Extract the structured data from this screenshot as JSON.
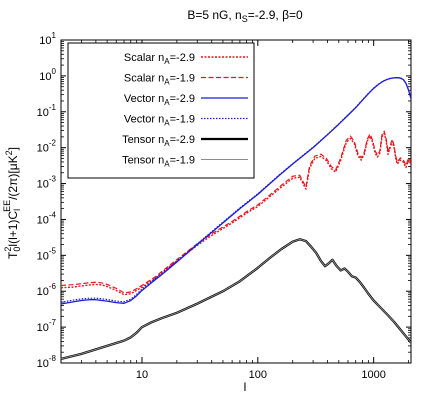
{
  "chart_data": {
    "type": "line",
    "title": "B=5 nG, n",
    "title_sub": "S",
    "title_rest": "=-2.9, β=0",
    "xlabel": "l",
    "ylabel": "T",
    "ylabel_parts": [
      "T",
      "0",
      "2",
      "l(l+1)C",
      "l",
      "EE",
      "/(2π)[μK",
      "2",
      "]"
    ],
    "x_scale": "log",
    "y_scale": "log",
    "xlim": [
      2,
      2100
    ],
    "ylim": [
      1e-08,
      10
    ],
    "x_ticks": [
      10,
      100,
      1000
    ],
    "x_tick_labels": [
      "10",
      "100",
      "1000"
    ],
    "y_ticks": [
      1e-08,
      1e-07,
      1e-06,
      1e-05,
      0.0001,
      0.001,
      0.01,
      0.1,
      1,
      10
    ],
    "y_tick_labels": [
      {
        "base": "10",
        "exp": "-8"
      },
      {
        "base": "10",
        "exp": "-7"
      },
      {
        "base": "10",
        "exp": "-6"
      },
      {
        "base": "10",
        "exp": "-5"
      },
      {
        "base": "10",
        "exp": "-4"
      },
      {
        "base": "10",
        "exp": "-3"
      },
      {
        "base": "10",
        "exp": "-2"
      },
      {
        "base": "10",
        "exp": "-1"
      },
      {
        "base": "10",
        "exp": "0"
      },
      {
        "base": "10",
        "exp": "1"
      }
    ],
    "legend_position": "top-left",
    "series": [
      {
        "name": "Scalar n",
        "sub": "A",
        "tail": "=-2.9",
        "color": "#e8151b",
        "dash": "2,1.5",
        "width": 1.4,
        "points": [
          [
            2,
            1.25e-06
          ],
          [
            2.5,
            1.3e-06
          ],
          [
            3,
            1.4e-06
          ],
          [
            3.5,
            1.5e-06
          ],
          [
            4,
            1.55e-06
          ],
          [
            4.5,
            1.5e-06
          ],
          [
            5,
            1.35e-06
          ],
          [
            6,
            1.05e-06
          ],
          [
            7,
            8e-07
          ],
          [
            8,
            8.5e-07
          ],
          [
            10,
            1.3e-06
          ],
          [
            13,
            2.3e-06
          ],
          [
            16,
            4e-06
          ],
          [
            20,
            7e-06
          ],
          [
            30,
            1.9e-05
          ],
          [
            40,
            3.6e-05
          ],
          [
            60,
            8e-05
          ],
          [
            80,
            0.00015
          ],
          [
            100,
            0.00023
          ],
          [
            130,
            0.00046
          ],
          [
            160,
            0.0008
          ],
          [
            200,
            0.0014
          ],
          [
            230,
            0.0015
          ],
          [
            260,
            0.0007
          ],
          [
            280,
            0.0027
          ],
          [
            310,
            0.005
          ],
          [
            350,
            0.0057
          ],
          [
            390,
            0.0044
          ],
          [
            430,
            0.0026
          ],
          [
            470,
            0.0021
          ],
          [
            520,
            0.0045
          ],
          [
            580,
            0.014
          ],
          [
            630,
            0.018
          ],
          [
            680,
            0.013
          ],
          [
            730,
            0.006
          ],
          [
            780,
            0.0045
          ],
          [
            830,
            0.0065
          ],
          [
            880,
            0.015
          ],
          [
            930,
            0.021
          ],
          [
            980,
            0.014
          ],
          [
            1030,
            0.007
          ],
          [
            1080,
            0.0055
          ],
          [
            1130,
            0.007
          ],
          [
            1180,
            0.02
          ],
          [
            1230,
            0.025
          ],
          [
            1280,
            0.016
          ],
          [
            1330,
            0.0065
          ],
          [
            1400,
            0.011
          ],
          [
            1450,
            0.015
          ],
          [
            1500,
            0.01
          ],
          [
            1550,
            0.005
          ],
          [
            1600,
            0.0035
          ],
          [
            1700,
            0.0045
          ],
          [
            1800,
            0.004
          ],
          [
            1900,
            0.0028
          ],
          [
            2000,
            0.0045
          ],
          [
            2100,
            0.0035
          ]
        ]
      },
      {
        "name": "Scalar n",
        "sub": "A",
        "tail": "=-1.9",
        "color": "#e8151b",
        "dash": "5,2.5",
        "width": 1.2,
        "points": [
          [
            2,
            1.45e-06
          ],
          [
            2.5,
            1.52e-06
          ],
          [
            3,
            1.62e-06
          ],
          [
            3.5,
            1.72e-06
          ],
          [
            4,
            1.78e-06
          ],
          [
            4.5,
            1.7e-06
          ],
          [
            5,
            1.55e-06
          ],
          [
            6,
            1.2e-06
          ],
          [
            7,
            9e-07
          ],
          [
            8,
            9.5e-07
          ],
          [
            10,
            1.45e-06
          ],
          [
            13,
            2.5e-06
          ],
          [
            16,
            4.3e-06
          ],
          [
            20,
            7.6e-06
          ],
          [
            30,
            2.1e-05
          ],
          [
            40,
            4e-05
          ],
          [
            60,
            8.8e-05
          ],
          [
            80,
            0.000165
          ],
          [
            100,
            0.000255
          ],
          [
            130,
            0.00051
          ],
          [
            160,
            0.0009
          ],
          [
            200,
            0.0016
          ],
          [
            230,
            0.0017
          ],
          [
            260,
            0.0008
          ],
          [
            280,
            0.0031
          ],
          [
            310,
            0.0058
          ],
          [
            350,
            0.0066
          ],
          [
            390,
            0.0051
          ],
          [
            430,
            0.003
          ],
          [
            470,
            0.0024
          ],
          [
            520,
            0.0052
          ],
          [
            580,
            0.016
          ],
          [
            630,
            0.021
          ],
          [
            680,
            0.015
          ],
          [
            730,
            0.007
          ],
          [
            780,
            0.0052
          ],
          [
            830,
            0.0075
          ],
          [
            880,
            0.017
          ],
          [
            930,
            0.024
          ],
          [
            980,
            0.016
          ],
          [
            1030,
            0.008
          ],
          [
            1080,
            0.0063
          ],
          [
            1130,
            0.008
          ],
          [
            1180,
            0.023
          ],
          [
            1230,
            0.029
          ],
          [
            1280,
            0.018
          ],
          [
            1330,
            0.0075
          ],
          [
            1400,
            0.0125
          ],
          [
            1450,
            0.017
          ],
          [
            1500,
            0.0115
          ],
          [
            1550,
            0.0058
          ],
          [
            1600,
            0.004
          ],
          [
            1700,
            0.0052
          ],
          [
            1800,
            0.0046
          ],
          [
            1900,
            0.0032
          ],
          [
            2000,
            0.0052
          ],
          [
            2100,
            0.004
          ]
        ]
      },
      {
        "name": "Vector n",
        "sub": "A",
        "tail": "=-2.9",
        "color": "#1c1cd6",
        "dash": "",
        "width": 1.3,
        "points": [
          [
            2,
            4.4e-07
          ],
          [
            2.5,
            5e-07
          ],
          [
            3,
            5.5e-07
          ],
          [
            3.5,
            5.8e-07
          ],
          [
            4,
            5.8e-07
          ],
          [
            5,
            5.3e-07
          ],
          [
            6,
            4.8e-07
          ],
          [
            7,
            4.6e-07
          ],
          [
            8,
            5.5e-07
          ],
          [
            9,
            7.5e-07
          ],
          [
            10,
            1.05e-06
          ],
          [
            12,
            1.7e-06
          ],
          [
            15,
            3e-06
          ],
          [
            20,
            6.5e-06
          ],
          [
            30,
            2e-05
          ],
          [
            50,
            8e-05
          ],
          [
            70,
            0.0002
          ],
          [
            100,
            0.0005
          ],
          [
            150,
            0.0016
          ],
          [
            200,
            0.0035
          ],
          [
            300,
            0.01
          ],
          [
            400,
            0.023
          ],
          [
            500,
            0.045
          ],
          [
            600,
            0.08
          ],
          [
            700,
            0.13
          ],
          [
            800,
            0.21
          ],
          [
            900,
            0.32
          ],
          [
            1000,
            0.45
          ],
          [
            1100,
            0.58
          ],
          [
            1200,
            0.7
          ],
          [
            1300,
            0.79
          ],
          [
            1400,
            0.85
          ],
          [
            1500,
            0.88
          ],
          [
            1600,
            0.89
          ],
          [
            1700,
            0.87
          ],
          [
            1800,
            0.79
          ],
          [
            1900,
            0.62
          ],
          [
            2000,
            0.4
          ],
          [
            2100,
            0.23
          ]
        ]
      },
      {
        "name": "Vector n",
        "sub": "A",
        "tail": "=-1.9",
        "color": "#1c1cd6",
        "dash": "1.5,1.5",
        "width": 1.2,
        "points": [
          [
            2,
            4.9e-07
          ],
          [
            2.5,
            5.6e-07
          ],
          [
            3,
            6.1e-07
          ],
          [
            3.5,
            6.4e-07
          ],
          [
            4,
            6.4e-07
          ],
          [
            5,
            5.9e-07
          ],
          [
            6,
            5.3e-07
          ],
          [
            7,
            5.1e-07
          ],
          [
            8,
            6e-07
          ],
          [
            9,
            8.2e-07
          ],
          [
            10,
            1.15e-06
          ],
          [
            12,
            1.85e-06
          ],
          [
            15,
            3.2e-06
          ],
          [
            20,
            6.9e-06
          ],
          [
            30,
            2.1e-05
          ],
          [
            50,
            8.4e-05
          ],
          [
            70,
            0.00021
          ],
          [
            100,
            0.00052
          ],
          [
            150,
            0.00165
          ],
          [
            200,
            0.0036
          ],
          [
            300,
            0.0103
          ],
          [
            400,
            0.0235
          ],
          [
            500,
            0.046
          ],
          [
            600,
            0.082
          ],
          [
            700,
            0.133
          ],
          [
            800,
            0.215
          ],
          [
            900,
            0.325
          ],
          [
            1000,
            0.46
          ],
          [
            1100,
            0.59
          ],
          [
            1200,
            0.71
          ],
          [
            1300,
            0.8
          ],
          [
            1400,
            0.86
          ],
          [
            1500,
            0.89
          ],
          [
            1600,
            0.9
          ],
          [
            1700,
            0.88
          ],
          [
            1800,
            0.8
          ],
          [
            1900,
            0.63
          ],
          [
            2000,
            0.41
          ],
          [
            2100,
            0.24
          ]
        ]
      },
      {
        "name": "Tensor n",
        "sub": "A",
        "tail": "=-2.9",
        "color": "#000000",
        "dash": "",
        "width": 2.3,
        "points": [
          [
            2,
            1.3e-08
          ],
          [
            3,
            1.8e-08
          ],
          [
            4,
            2.4e-08
          ],
          [
            5,
            3e-08
          ],
          [
            6,
            3.6e-08
          ],
          [
            7,
            4.2e-08
          ],
          [
            8,
            5.2e-08
          ],
          [
            9,
            7e-08
          ],
          [
            10,
            1e-07
          ],
          [
            12,
            1.35e-07
          ],
          [
            15,
            1.8e-07
          ],
          [
            20,
            2.5e-07
          ],
          [
            30,
            4.5e-07
          ],
          [
            50,
            1e-06
          ],
          [
            70,
            1.9e-06
          ],
          [
            100,
            4.5e-06
          ],
          [
            130,
            9e-06
          ],
          [
            160,
            1.5e-05
          ],
          [
            200,
            2.4e-05
          ],
          [
            230,
            2.8e-05
          ],
          [
            260,
            2.5e-05
          ],
          [
            290,
            1.7e-05
          ],
          [
            320,
            1.15e-05
          ],
          [
            350,
            7e-06
          ],
          [
            380,
            5e-06
          ],
          [
            410,
            6e-06
          ],
          [
            440,
            7.5e-06
          ],
          [
            480,
            5e-06
          ],
          [
            520,
            3.8e-06
          ],
          [
            560,
            4.3e-06
          ],
          [
            600,
            3.5e-06
          ],
          [
            650,
            2.6e-06
          ],
          [
            700,
            2.4e-06
          ],
          [
            760,
            1.8e-06
          ],
          [
            820,
            1.3e-06
          ],
          [
            900,
            8.5e-07
          ],
          [
            1000,
            5.5e-07
          ],
          [
            1100,
            4e-07
          ],
          [
            1200,
            3e-07
          ],
          [
            1300,
            2.3e-07
          ],
          [
            1500,
            1.4e-07
          ],
          [
            1700,
            8.5e-08
          ],
          [
            1900,
            5.5e-08
          ],
          [
            2100,
            3.7e-08
          ]
        ]
      },
      {
        "name": "Tensor n",
        "sub": "A",
        "tail": "=-1.9",
        "color": "#8c8c8c",
        "dash": "",
        "width": 1.0,
        "points": [
          [
            2,
            1.3e-08
          ],
          [
            3,
            1.8e-08
          ],
          [
            4,
            2.4e-08
          ],
          [
            5,
            3e-08
          ],
          [
            6,
            3.6e-08
          ],
          [
            7,
            4.2e-08
          ],
          [
            8,
            5.2e-08
          ],
          [
            9,
            7e-08
          ],
          [
            10,
            1e-07
          ],
          [
            12,
            1.35e-07
          ],
          [
            15,
            1.8e-07
          ],
          [
            20,
            2.5e-07
          ],
          [
            30,
            4.5e-07
          ],
          [
            50,
            1e-06
          ],
          [
            70,
            1.9e-06
          ],
          [
            100,
            4.5e-06
          ],
          [
            130,
            9e-06
          ],
          [
            160,
            1.5e-05
          ],
          [
            200,
            2.4e-05
          ],
          [
            230,
            2.8e-05
          ],
          [
            260,
            2.5e-05
          ],
          [
            290,
            1.7e-05
          ],
          [
            320,
            1.15e-05
          ],
          [
            350,
            7e-06
          ],
          [
            380,
            5e-06
          ],
          [
            410,
            6e-06
          ],
          [
            440,
            7.5e-06
          ],
          [
            480,
            5e-06
          ],
          [
            520,
            3.8e-06
          ],
          [
            560,
            4.3e-06
          ],
          [
            600,
            3.5e-06
          ],
          [
            650,
            2.6e-06
          ],
          [
            700,
            2.4e-06
          ],
          [
            760,
            1.8e-06
          ],
          [
            820,
            1.3e-06
          ],
          [
            900,
            8.5e-07
          ],
          [
            1000,
            5.5e-07
          ],
          [
            1100,
            4e-07
          ],
          [
            1200,
            3e-07
          ],
          [
            1300,
            2.3e-07
          ],
          [
            1500,
            1.4e-07
          ],
          [
            1700,
            8.5e-08
          ],
          [
            1900,
            5.5e-08
          ],
          [
            2100,
            3.7e-08
          ]
        ]
      }
    ]
  }
}
